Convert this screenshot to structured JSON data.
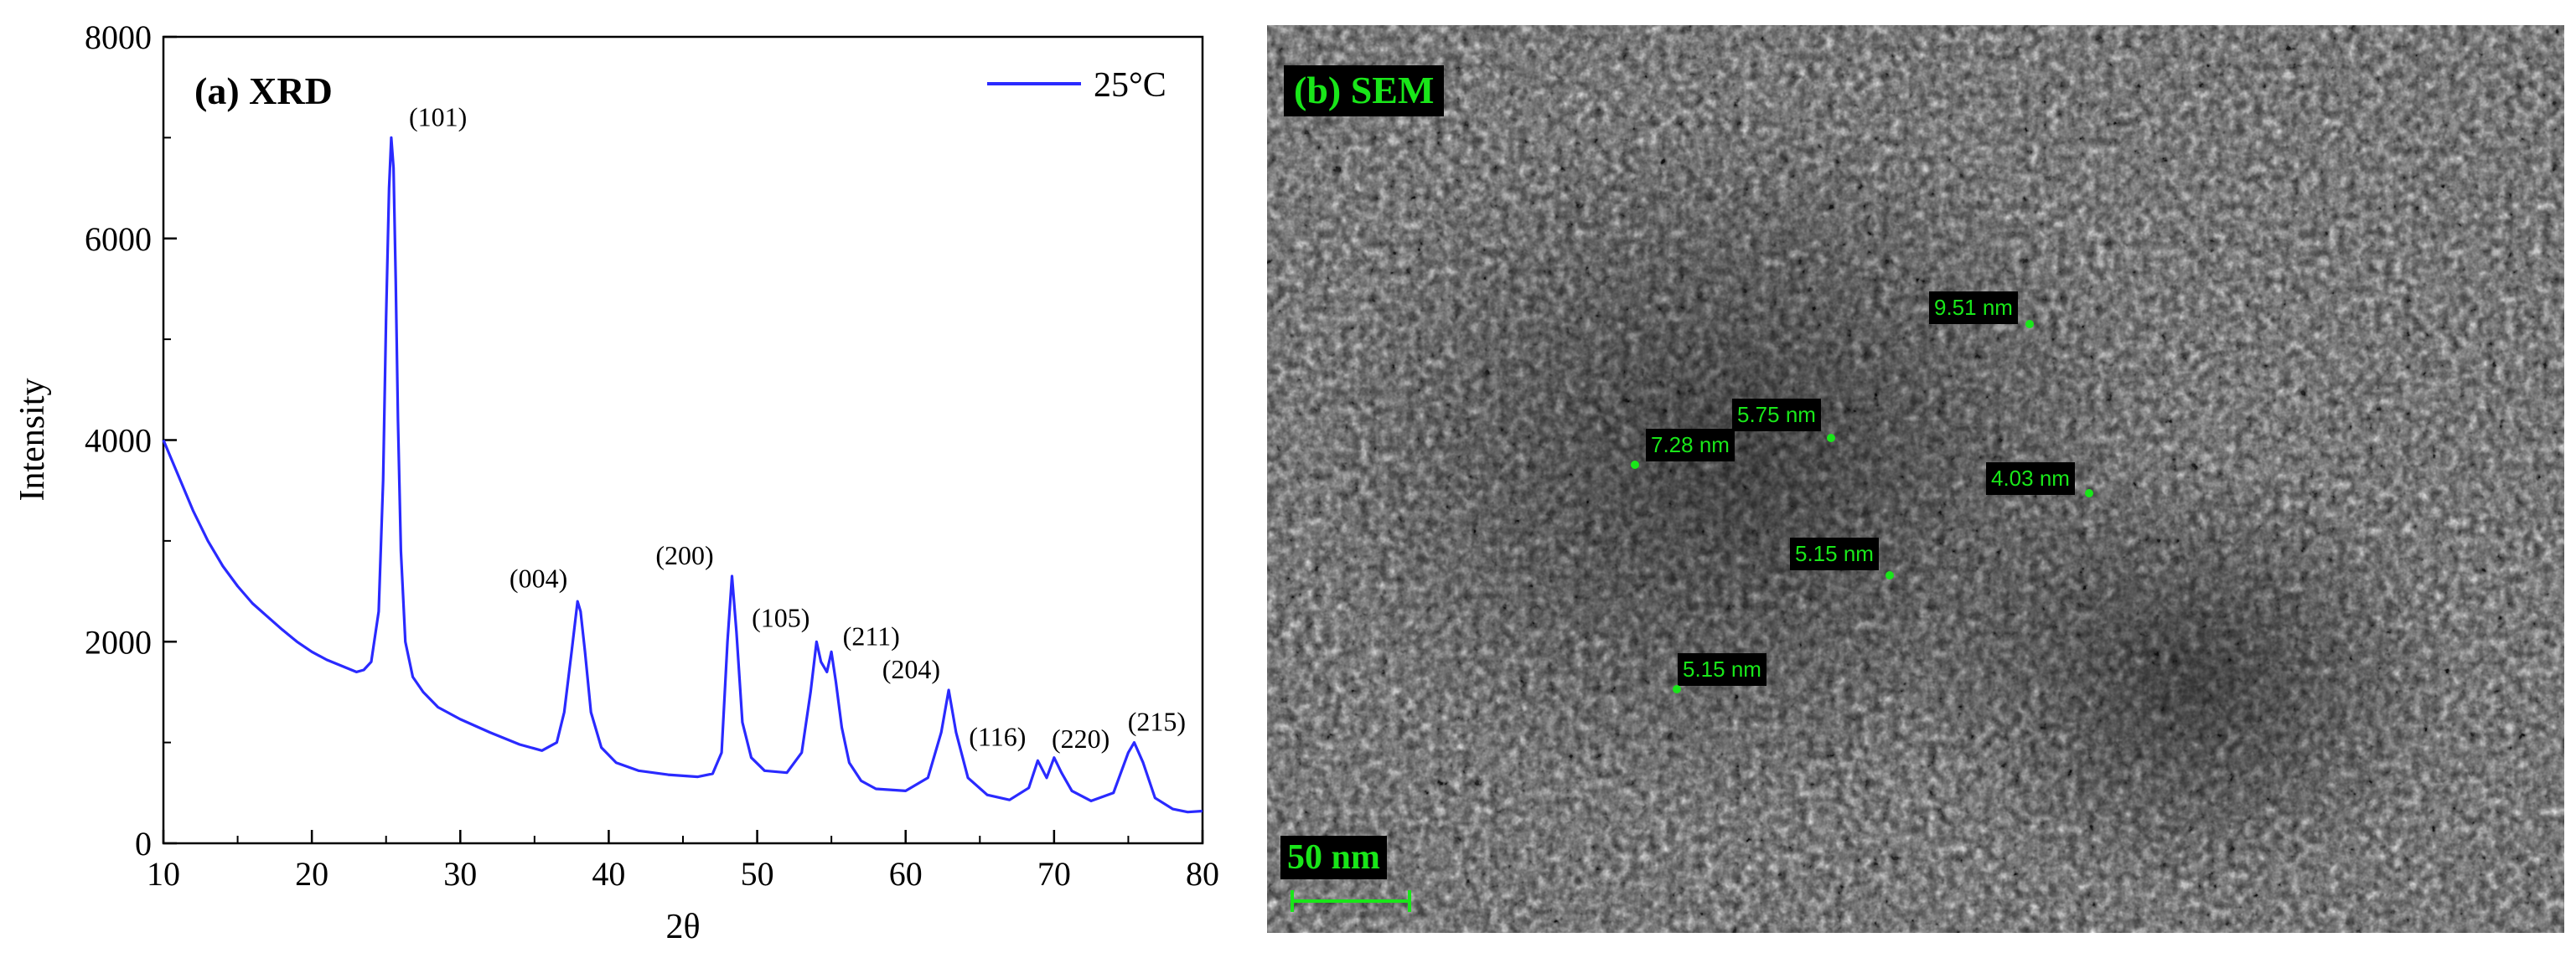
{
  "chart_data": [
    {
      "type": "line",
      "panel_label": "(a) XRD",
      "xlabel": "2θ",
      "ylabel": "Intensity",
      "xlim": [
        10,
        80
      ],
      "ylim": [
        0,
        8000
      ],
      "xticks": [
        10,
        20,
        30,
        40,
        50,
        60,
        70,
        80
      ],
      "yticks": [
        0,
        2000,
        4000,
        6000,
        8000
      ],
      "legend_position": "top-right",
      "grid": false,
      "series": [
        {
          "name": "25°C",
          "color": "#2a2aff",
          "x": [
            10,
            11,
            12,
            13,
            14,
            15,
            16,
            17,
            18,
            19,
            20,
            21,
            22,
            23,
            23.5,
            24,
            24.5,
            24.8,
            25.0,
            25.2,
            25.35,
            25.5,
            25.65,
            25.8,
            26.0,
            26.3,
            26.8,
            27.5,
            28.5,
            30,
            32,
            34,
            35.5,
            36.5,
            37,
            37.5,
            37.9,
            38.1,
            38.4,
            38.8,
            39.5,
            40.5,
            42,
            44,
            46,
            47,
            47.6,
            48.0,
            48.3,
            48.6,
            49.0,
            49.6,
            50.5,
            52,
            53,
            53.6,
            54.0,
            54.3,
            54.7,
            55.0,
            55.3,
            55.7,
            56.2,
            57,
            58,
            60,
            61.5,
            62.4,
            62.9,
            63.4,
            64.2,
            65.5,
            67,
            68.3,
            68.9,
            69.5,
            70.0,
            70.5,
            71.2,
            72.5,
            74,
            75.0,
            75.4,
            76.0,
            76.8,
            78,
            79,
            80
          ],
          "y": [
            4000,
            3650,
            3300,
            3000,
            2750,
            2550,
            2380,
            2250,
            2120,
            2000,
            1900,
            1820,
            1760,
            1700,
            1720,
            1800,
            2300,
            3600,
            5200,
            6500,
            7000,
            6700,
            5600,
            4200,
            2900,
            2000,
            1650,
            1500,
            1350,
            1230,
            1100,
            980,
            920,
            1000,
            1300,
            1900,
            2400,
            2300,
            1900,
            1300,
            950,
            800,
            720,
            680,
            660,
            690,
            900,
            2000,
            2650,
            2100,
            1200,
            850,
            720,
            700,
            900,
            1500,
            2000,
            1800,
            1700,
            1900,
            1600,
            1150,
            800,
            620,
            540,
            520,
            650,
            1100,
            1520,
            1100,
            650,
            480,
            430,
            550,
            820,
            650,
            850,
            700,
            520,
            420,
            500,
            900,
            1000,
            800,
            450,
            340,
            310,
            320
          ]
        }
      ],
      "annotations": [
        {
          "text": "(101)",
          "x": 25.3,
          "y": 7000
        },
        {
          "text": "(004)",
          "x": 37.9,
          "y": 2420
        },
        {
          "text": "(200)",
          "x": 48.2,
          "y": 2650
        },
        {
          "text": "(105)",
          "x": 54.0,
          "y": 2030
        },
        {
          "text": "(211)",
          "x": 55.2,
          "y": 1850
        },
        {
          "text": "(204)",
          "x": 62.9,
          "y": 1520
        },
        {
          "text": "(116)",
          "x": 68.9,
          "y": 850
        },
        {
          "text": "(220)",
          "x": 70.4,
          "y": 830
        },
        {
          "text": "(215)",
          "x": 75.3,
          "y": 1000
        }
      ]
    }
  ],
  "sem": {
    "panel_label": "(b) SEM",
    "scale_bar_label": "50 nm",
    "measurements": [
      "9.51 nm",
      "5.75 nm",
      "7.28 nm",
      "4.03 nm",
      "5.15 nm",
      "5.15 nm"
    ],
    "label_color": "#19e619"
  }
}
